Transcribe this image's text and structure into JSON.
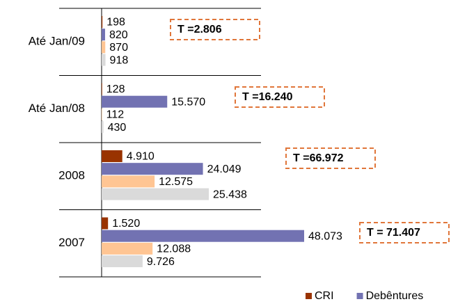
{
  "chart_data": {
    "type": "bar",
    "orientation": "horizontal",
    "categories": [
      "Até Jan/09",
      "Até Jan/08",
      "2008",
      "2007"
    ],
    "series": [
      {
        "name": "CRI",
        "color": "#993300",
        "values": [
          198,
          128,
          4910,
          1520
        ],
        "value_labels": [
          "198",
          "128",
          "4.910",
          "1.520"
        ]
      },
      {
        "name": "Debêntures",
        "color": "#7272b2",
        "values": [
          820,
          15570,
          24049,
          48073
        ],
        "value_labels": [
          "820",
          "15.570",
          "24.049",
          "48.073"
        ]
      },
      {
        "color": "#ffc593",
        "values": [
          870,
          112,
          12575,
          12088
        ],
        "value_labels": [
          "870",
          "112",
          "12.575",
          "12.088"
        ]
      },
      {
        "color": "#dadada",
        "values": [
          918,
          430,
          25438,
          9726
        ],
        "value_labels": [
          "918",
          "430",
          "25.438",
          "9.726"
        ]
      }
    ],
    "annotations": [
      "T =2.806",
      "T =16.240",
      "T =66.972",
      "T = 71.407"
    ]
  }
}
